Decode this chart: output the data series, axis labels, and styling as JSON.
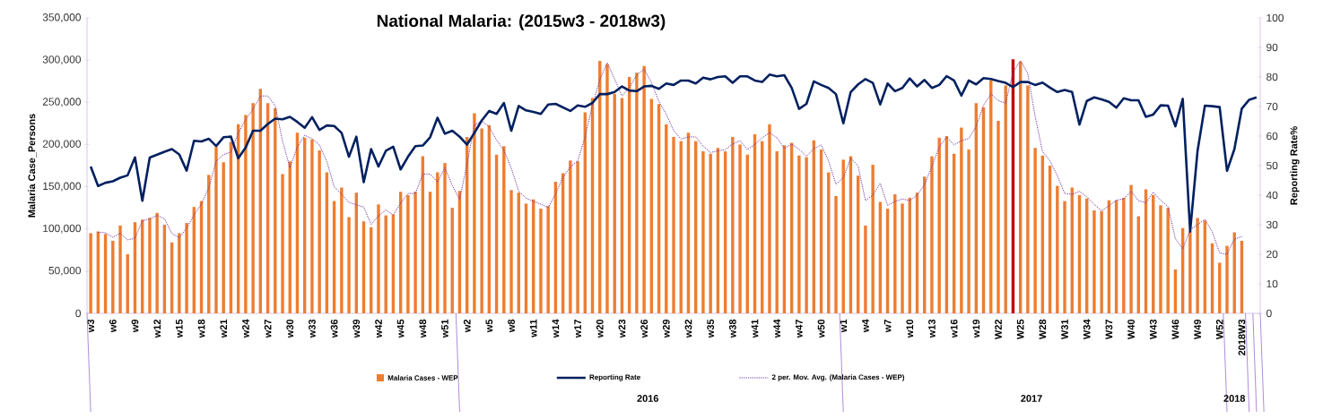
{
  "chart_data": {
    "type": "bar",
    "title": "National Malaria: (2015w3 - 2018w3)",
    "ylabel": "Malaria Case_Persons",
    "y2label": "Reporting Rate%",
    "annotations": [
      "2016",
      "2017",
      "2018"
    ],
    "categories": [
      "w3",
      null,
      null,
      "w6",
      null,
      null,
      "w9",
      null,
      null,
      "w12",
      null,
      null,
      "w15",
      null,
      null,
      "w18",
      null,
      null,
      "w21",
      null,
      null,
      "w24",
      null,
      null,
      "w27",
      null,
      null,
      "w30",
      null,
      null,
      "w33",
      null,
      null,
      "w36",
      null,
      null,
      "w39",
      null,
      null,
      "w42",
      null,
      null,
      "w45",
      null,
      null,
      "w48",
      null,
      null,
      "w51",
      null,
      null,
      "w2",
      null,
      null,
      "w5",
      null,
      null,
      "w8",
      null,
      null,
      "w11",
      null,
      null,
      "w14",
      null,
      null,
      "w17",
      null,
      null,
      "w20",
      null,
      null,
      "w23",
      null,
      null,
      "w26",
      null,
      null,
      "w29",
      null,
      null,
      "w32",
      null,
      null,
      "w35",
      null,
      null,
      "w38",
      null,
      null,
      "w41",
      null,
      null,
      "w44",
      null,
      null,
      "w47",
      null,
      null,
      "w50",
      null,
      null,
      "w1",
      null,
      null,
      "w4",
      null,
      null,
      "w7",
      null,
      null,
      "w10",
      null,
      null,
      "w13",
      null,
      null,
      "w16",
      null,
      null,
      "w19",
      null,
      null,
      "W22",
      null,
      null,
      "W25",
      null,
      null,
      "W28",
      null,
      null,
      "W31",
      null,
      null,
      "W34",
      null,
      null,
      "W37",
      null,
      null,
      "W40",
      null,
      null,
      "W43",
      null,
      null,
      "W46",
      null,
      null,
      "W49",
      null,
      null,
      "W52",
      null,
      null,
      "2018W3",
      null,
      null
    ],
    "series": [
      {
        "name": "Malaria Cases - WEP",
        "color": "#ed7d31",
        "colors": [
          "#ed7d31",
          "#ed7d31",
          "#ed7d31",
          "#ed7d31",
          "#ed7d31",
          "#ed7d31",
          "#ed7d31",
          "#ed7d31",
          "#ed7d31",
          "#ed7d31",
          "#ed7d31",
          "#ed7d31",
          "#ed7d31",
          "#ed7d31",
          "#ed7d31",
          "#ed7d31",
          "#ed7d31",
          "#ed7d31",
          "#ed7d31",
          "#ed7d31",
          "#ed7d31",
          "#ed7d31",
          "#ed7d31",
          "#ed7d31",
          "#ed7d31",
          "#ed7d31",
          "#ed7d31",
          "#ed7d31",
          "#ed7d31",
          "#ed7d31",
          "#ed7d31",
          "#ed7d31",
          "#ed7d31",
          "#ed7d31",
          "#ed7d31",
          "#ed7d31",
          "#ed7d31",
          "#ed7d31",
          "#ed7d31",
          "#ed7d31",
          "#ed7d31",
          "#ed7d31",
          "#ed7d31",
          "#ed7d31",
          "#ed7d31",
          "#ed7d31",
          "#ed7d31",
          "#ed7d31",
          "#ed7d31",
          "#ed7d31",
          "#ed7d31",
          "#ed7d31",
          "#ed7d31",
          "#ed7d31",
          "#ed7d31",
          "#ed7d31",
          "#ed7d31",
          "#ed7d31",
          "#ed7d31",
          "#ed7d31",
          "#ed7d31",
          "#ed7d31",
          "#ed7d31",
          "#ed7d31",
          "#ed7d31",
          "#ed7d31",
          "#ed7d31",
          "#ed7d31",
          "#ed7d31",
          "#ed7d31",
          "#ed7d31",
          "#ed7d31",
          "#ed7d31",
          "#ed7d31",
          "#ed7d31",
          "#ed7d31",
          "#ed7d31",
          "#ed7d31",
          "#ed7d31",
          "#ed7d31",
          "#ed7d31",
          "#ed7d31",
          "#ed7d31",
          "#ed7d31",
          "#ed7d31",
          "#ed7d31",
          "#ed7d31",
          "#ed7d31",
          "#ed7d31",
          "#ed7d31",
          "#ed7d31",
          "#ed7d31",
          "#ed7d31",
          "#ed7d31",
          "#ed7d31",
          "#ed7d31",
          "#ed7d31",
          "#ed7d31",
          "#ed7d31",
          "#ed7d31",
          "#ed7d31",
          "#ed7d31",
          "#ed7d31",
          "#ed7d31",
          "#ed7d31",
          "#ed7d31",
          "#ed7d31",
          "#ed7d31",
          "#ed7d31",
          "#ed7d31",
          "#ed7d31",
          "#ed7d31",
          "#ed7d31",
          "#ed7d31",
          "#ed7d31",
          "#ed7d31",
          "#ed7d31",
          "#ed7d31",
          "#ed7d31",
          "#ed7d31",
          "#ed7d31",
          "#ed7d31",
          "#ed7d31",
          "#ed7d31",
          "#ed7d31",
          "#c00000",
          "#ed7d31",
          "#ed7d31",
          "#ed7d31",
          "#ed7d31",
          "#ed7d31",
          "#ed7d31",
          "#ed7d31",
          "#ed7d31",
          "#ed7d31",
          "#ed7d31",
          "#ed7d31",
          "#ed7d31",
          "#ed7d31",
          "#ed7d31",
          "#ed7d31",
          "#ed7d31",
          "#ed7d31",
          "#ed7d31",
          "#ed7d31",
          "#ed7d31",
          "#ed7d31",
          "#ed7d31",
          "#ed7d31",
          "#ed7d31",
          "#ed7d31",
          "#ed7d31",
          "#ed7d31",
          "#ed7d31",
          "#ed7d31",
          "#ed7d31",
          "#ed7d31",
          "#ed7d31",
          "#ed7d31"
        ],
        "values": [
          95000,
          97000,
          94000,
          86000,
          104000,
          70000,
          108000,
          111000,
          113000,
          119000,
          105000,
          84000,
          95000,
          107000,
          126000,
          133000,
          164000,
          197000,
          179000,
          203000,
          224000,
          235000,
          249000,
          266000,
          249000,
          243000,
          165000,
          180000,
          214000,
          208000,
          206000,
          193000,
          167000,
          133000,
          149000,
          114000,
          143000,
          109000,
          102000,
          129000,
          116000,
          117000,
          144000,
          140000,
          144000,
          186000,
          144000,
          167000,
          178000,
          125000,
          145000,
          209000,
          237000,
          219000,
          223000,
          188000,
          198000,
          146000,
          143000,
          130000,
          135000,
          124000,
          127000,
          156000,
          166000,
          181000,
          180000,
          238000,
          255000,
          299000,
          295000,
          260000,
          255000,
          280000,
          285000,
          293000,
          254000,
          248000,
          224000,
          209000,
          204000,
          214000,
          204000,
          192000,
          189000,
          196000,
          192000,
          209000,
          200000,
          188000,
          212000,
          204000,
          224000,
          192000,
          199000,
          202000,
          187000,
          185000,
          205000,
          194000,
          167000,
          139000,
          182000,
          186000,
          163000,
          104000,
          176000,
          132000,
          124000,
          141000,
          130000,
          137000,
          143000,
          162000,
          186000,
          208000,
          210000,
          189000,
          220000,
          194000,
          249000,
          244000,
          276000,
          228000,
          270000,
          301000,
          298000,
          270000,
          196000,
          187000,
          175000,
          151000,
          133000,
          149000,
          140000,
          136000,
          122000,
          121000,
          134000,
          134000,
          137000,
          152000,
          115000,
          147000,
          140000,
          128000,
          125000,
          52000,
          101000,
          97000,
          113000,
          110000,
          83000,
          60000,
          80000,
          96000,
          86000,
          null,
          null
        ]
      },
      {
        "name": "Reporting Rate",
        "type": "line",
        "axis": "y2",
        "color": "#002060",
        "line_style": "solid",
        "values": [
          49.7,
          43.1,
          44.2,
          44.7,
          45.9,
          46.7,
          52.8,
          38.1,
          52.7,
          53.7,
          54.7,
          55.6,
          53.8,
          48.3,
          58.4,
          58.2,
          59.1,
          56.6,
          59.6,
          59.8,
          52.5,
          56.1,
          61.8,
          61.8,
          64.1,
          65.9,
          65.7,
          66.5,
          64.8,
          62.8,
          66.4,
          62.1,
          63.6,
          63.4,
          61.1,
          53,
          59.8,
          44.4,
          55.6,
          49.7,
          55,
          56.4,
          48.7,
          53,
          56.6,
          56.8,
          59.6,
          66.2,
          60.8,
          61.8,
          59.8,
          57.1,
          61.1,
          65.3,
          68.5,
          67.5,
          71.2,
          61.8,
          70.2,
          68.7,
          68.2,
          67.5,
          70.7,
          70.9,
          69.7,
          68.5,
          70.4,
          69.9,
          71.2,
          74.2,
          74.2,
          74.9,
          76.8,
          75.4,
          75.2,
          76.8,
          77,
          76,
          77.8,
          77.3,
          78.8,
          78.8,
          77.8,
          79.8,
          79.2,
          80,
          80.2,
          78,
          80.2,
          80.2,
          78.8,
          78.3,
          80.8,
          80.2,
          80.6,
          76.3,
          69.2,
          70.9,
          78.5,
          77.3,
          76.3,
          74.2,
          64.3,
          74.9,
          77.5,
          79.3,
          78,
          70.7,
          77.8,
          75.2,
          76.3,
          79.5,
          76.8,
          79,
          76.3,
          77.3,
          80.3,
          78.8,
          73.7,
          78.8,
          77.5,
          79.6,
          79.3,
          78.6,
          78,
          76.6,
          78.3,
          78.3,
          77.3,
          78.1,
          76.4,
          74.9,
          75.6,
          74.9,
          63.9,
          71.9,
          73.1,
          72.4,
          71.6,
          69.6,
          72.8,
          72.1,
          72.1,
          66.5,
          67.3,
          70.4,
          70.3,
          63.3,
          72.6,
          27.7,
          54.9,
          70.3,
          70.1,
          69.8,
          48.2,
          55.6,
          69.3,
          72.3,
          73.1
        ]
      },
      {
        "name": "2 per. Mov. Avg. (Malaria Cases - WEP)",
        "type": "line",
        "color": "#7030a0",
        "line_style": "dotted",
        "values": [
          null,
          96000,
          95500,
          90000,
          95000,
          87000,
          89000,
          109500,
          112000,
          116000,
          112000,
          94500,
          89500,
          101000,
          116500,
          129500,
          148500,
          180500,
          188000,
          191000,
          213500,
          229500,
          242000,
          257500,
          257500,
          246000,
          204000,
          172500,
          197000,
          211000,
          207000,
          199500,
          180000,
          150000,
          141000,
          131500,
          128500,
          126000,
          105500,
          115500,
          122500,
          116500,
          130500,
          142000,
          142000,
          165000,
          165000,
          155500,
          172500,
          151500,
          135000,
          177000,
          223000,
          228000,
          221000,
          205500,
          193000,
          172000,
          144500,
          136500,
          132500,
          129500,
          125500,
          141500,
          161000,
          173500,
          180500,
          209000,
          246500,
          277000,
          297000,
          277500,
          257500,
          267500,
          282500,
          289000,
          273500,
          251000,
          236000,
          216500,
          206500,
          209000,
          209000,
          198000,
          190500,
          192500,
          194000,
          200500,
          204500,
          194000,
          200000,
          208000,
          214000,
          208000,
          195500,
          200500,
          194500,
          186000,
          195000,
          199500,
          180500,
          153000,
          160500,
          184000,
          174500,
          133500,
          140000,
          154000,
          128000,
          132500,
          135500,
          133500,
          140000,
          152500,
          174000,
          197000,
          209000,
          199500,
          204500,
          207000,
          221500,
          246500,
          260000,
          252000,
          249000,
          285500,
          299500,
          284000,
          233000,
          191500,
          181000,
          163000,
          142000,
          141000,
          144500,
          138000,
          129000,
          121500,
          127500,
          134000,
          135500,
          144500,
          133500,
          131000,
          143500,
          134000,
          126500,
          88500,
          76500,
          99000,
          105000,
          111500,
          96500,
          71500,
          70000,
          88000,
          91000,
          null,
          null
        ]
      }
    ],
    "ylim": [
      0,
      350000
    ],
    "yticks": [
      {
        "value": 0,
        "label": "0"
      },
      {
        "value": 50000,
        "label": "50,000"
      },
      {
        "value": 100000,
        "label": "100,000"
      },
      {
        "value": 150000,
        "label": "150,000"
      },
      {
        "value": 200000,
        "label": "200,000"
      },
      {
        "value": 250000,
        "label": "250,000"
      },
      {
        "value": 300000,
        "label": "300,000"
      },
      {
        "value": 350000,
        "label": "350,000"
      }
    ],
    "y2lim": [
      0,
      100
    ],
    "y2ticks": [
      0,
      10,
      20,
      30,
      40,
      50,
      60,
      70,
      80,
      90,
      100
    ],
    "legend": "bottom"
  }
}
